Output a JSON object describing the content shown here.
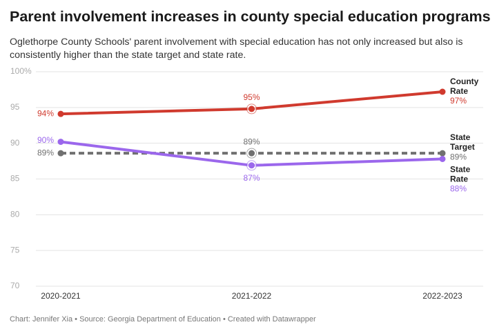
{
  "chart_data": {
    "type": "line",
    "title": "Parent involvement increases in county special education programs",
    "subtitle": "Oglethorpe County Schools' parent involvement with special education has not only increased but also is consistently higher than the state target and state rate.",
    "source": "Chart: Jennifer Xia • Source: Georgia Department of Education • Created with Datawrapper",
    "categories": [
      "2020-2021",
      "2021-2022",
      "2022-2023"
    ],
    "series": [
      {
        "name": "County Rate",
        "color": "#d03a2e",
        "values": [
          94.1,
          94.8,
          97.2
        ],
        "value_labels": [
          "94%",
          "95%",
          "97%"
        ]
      },
      {
        "name": "State Target",
        "color": "#707070",
        "dashed": true,
        "values": [
          88.6,
          88.6,
          88.6
        ],
        "value_labels": [
          "89%",
          "89%",
          "89%"
        ]
      },
      {
        "name": "State Rate",
        "color": "#9b67ec",
        "values": [
          90.2,
          86.9,
          87.8
        ],
        "value_labels": [
          "90%",
          "87%",
          "88%"
        ]
      }
    ],
    "ylim": [
      70,
      100
    ],
    "yticks": [
      70,
      75,
      80,
      85,
      90,
      95,
      {
        "value": 100,
        "label": "100%"
      }
    ],
    "grid": true
  }
}
